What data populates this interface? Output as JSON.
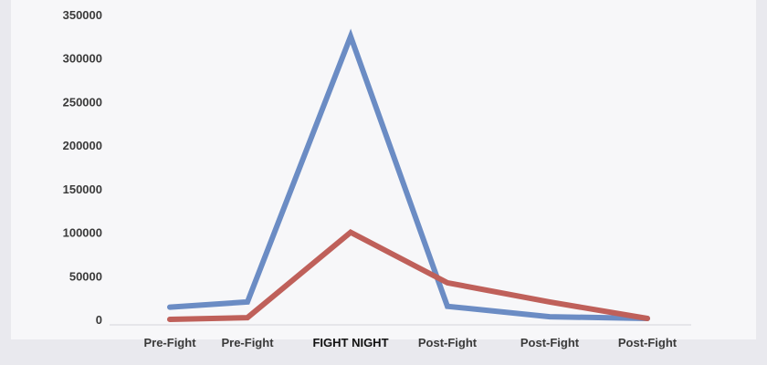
{
  "chart_data": {
    "type": "line",
    "categories": [
      "Pre-Fight",
      "Pre-Fight",
      "FIGHT NIGHT",
      "Post-Fight",
      "Post-Fight",
      "Post-Fight"
    ],
    "highlight_category_index": 2,
    "y_ticks": [
      "0",
      "50000",
      "100000",
      "150000",
      "200000",
      "250000",
      "300000",
      "350000"
    ],
    "ylim": [
      0,
      350000
    ],
    "grid": false,
    "legend": "none",
    "series": [
      {
        "color": "#6b8cc4",
        "values": [
          14000,
          20000,
          325000,
          15000,
          3000,
          1000
        ]
      },
      {
        "color": "#bf605a",
        "values": [
          0,
          2000,
          100000,
          42000,
          20000,
          1000
        ]
      }
    ]
  }
}
